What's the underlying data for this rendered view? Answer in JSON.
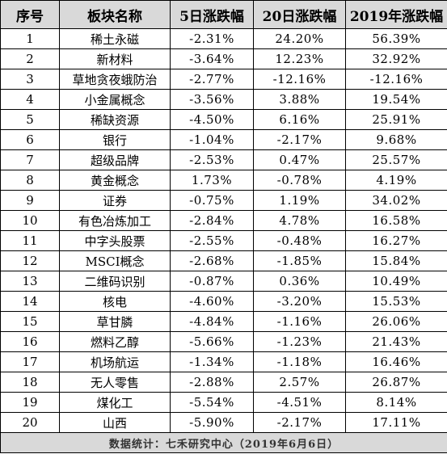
{
  "table": {
    "headers": [
      "序号",
      "板块名称",
      "5日涨跌幅",
      "20日涨跌幅",
      "2019年涨跌幅"
    ],
    "rows": [
      [
        "1",
        "稀土永磁",
        "-2.31%",
        "24.20%",
        "56.39%"
      ],
      [
        "2",
        "新材料",
        "-3.64%",
        "12.23%",
        "32.92%"
      ],
      [
        "3",
        "草地贪夜蛾防治",
        "-2.77%",
        "-12.16%",
        "-12.16%"
      ],
      [
        "4",
        "小金属概念",
        "-3.56%",
        "3.88%",
        "19.54%"
      ],
      [
        "5",
        "稀缺资源",
        "-4.50%",
        "6.16%",
        "25.91%"
      ],
      [
        "6",
        "银行",
        "-1.04%",
        "-2.17%",
        "9.68%"
      ],
      [
        "7",
        "超级品牌",
        "-2.53%",
        "0.47%",
        "25.57%"
      ],
      [
        "8",
        "黄金概念",
        "1.73%",
        "-0.78%",
        "4.19%"
      ],
      [
        "9",
        "证券",
        "-0.75%",
        "1.19%",
        "34.02%"
      ],
      [
        "10",
        "有色冶炼加工",
        "-2.84%",
        "4.78%",
        "16.58%"
      ],
      [
        "11",
        "中字头股票",
        "-2.55%",
        "-0.48%",
        "16.27%"
      ],
      [
        "12",
        "MSCI概念",
        "-2.68%",
        "-1.85%",
        "15.84%"
      ],
      [
        "13",
        "二维码识别",
        "-0.87%",
        "0.36%",
        "10.49%"
      ],
      [
        "14",
        "核电",
        "-4.60%",
        "-3.20%",
        "15.53%"
      ],
      [
        "15",
        "草甘膦",
        "-4.84%",
        "-1.16%",
        "26.06%"
      ],
      [
        "16",
        "燃料乙醇",
        "-5.66%",
        "-1.23%",
        "21.43%"
      ],
      [
        "17",
        "机场航运",
        "-1.34%",
        "-1.18%",
        "16.46%"
      ],
      [
        "18",
        "无人零售",
        "-2.88%",
        "2.57%",
        "26.87%"
      ],
      [
        "19",
        "煤化工",
        "-5.54%",
        "-4.51%",
        "8.14%"
      ],
      [
        "20",
        "山西",
        "-5.90%",
        "-2.17%",
        "17.11%"
      ]
    ],
    "footer": "数据统计：七禾研究中心（2019年6月6日）"
  },
  "colors": {
    "header_bg": "#d9d9d9",
    "footer_bg": "#d9d9d9",
    "border": "#000000"
  }
}
